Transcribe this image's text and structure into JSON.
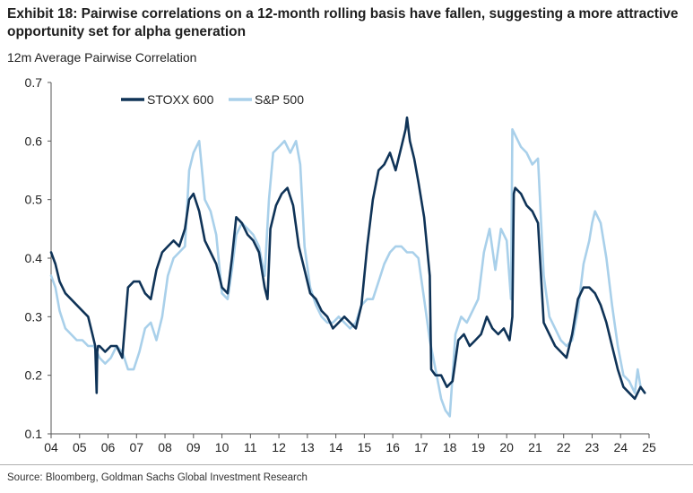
{
  "header": {
    "title": "Exhibit 18: Pairwise correlations on a 12-month rolling basis have fallen, suggesting a more attractive opportunity set for alpha generation",
    "subtitle": "12m Average Pairwise Correlation"
  },
  "footer": {
    "source": "Source: Bloomberg, Goldman Sachs Global Investment Research"
  },
  "colors": {
    "stoxx": "#0f3357",
    "sp": "#a9d0ea",
    "axis": "#555555"
  },
  "chart_data": {
    "type": "line",
    "title": "12m Average Pairwise Correlation",
    "xlabel": "",
    "ylabel": "",
    "xlim": [
      2004.0,
      2025.0
    ],
    "ylim": [
      0.1,
      0.7
    ],
    "yticks": [
      0.1,
      0.2,
      0.3,
      0.4,
      0.5,
      0.6,
      0.7
    ],
    "ytick_labels": [
      "0.1",
      "0.2",
      "0.3",
      "0.4",
      "0.5",
      "0.6",
      "0.7"
    ],
    "xticks": [
      2004,
      2005,
      2006,
      2007,
      2008,
      2009,
      2010,
      2011,
      2012,
      2013,
      2014,
      2015,
      2016,
      2017,
      2018,
      2019,
      2020,
      2021,
      2022,
      2023,
      2024,
      2025
    ],
    "xtick_labels": [
      "04",
      "05",
      "06",
      "07",
      "08",
      "09",
      "10",
      "11",
      "12",
      "13",
      "14",
      "15",
      "16",
      "17",
      "18",
      "19",
      "20",
      "21",
      "22",
      "23",
      "24",
      "25"
    ],
    "grid": false,
    "legend": "top-left",
    "series": [
      {
        "name": "STOXX 600",
        "color": "#0f3357",
        "x": [
          2004.0,
          2004.15,
          2004.3,
          2004.5,
          2004.7,
          2004.9,
          2005.1,
          2005.3,
          2005.45,
          2005.55,
          2005.6,
          2005.62,
          2005.65,
          2005.7,
          2005.9,
          2006.1,
          2006.3,
          2006.5,
          2006.7,
          2006.9,
          2007.1,
          2007.3,
          2007.5,
          2007.7,
          2007.9,
          2008.1,
          2008.3,
          2008.5,
          2008.7,
          2008.85,
          2009.0,
          2009.2,
          2009.4,
          2009.6,
          2009.8,
          2010.0,
          2010.2,
          2010.35,
          2010.5,
          2010.7,
          2010.9,
          2011.1,
          2011.3,
          2011.5,
          2011.6,
          2011.7,
          2011.9,
          2012.1,
          2012.3,
          2012.5,
          2012.7,
          2012.9,
          2013.1,
          2013.3,
          2013.5,
          2013.7,
          2013.9,
          2014.1,
          2014.3,
          2014.5,
          2014.7,
          2014.9,
          2015.1,
          2015.3,
          2015.5,
          2015.7,
          2015.9,
          2016.1,
          2016.3,
          2016.45,
          2016.5,
          2016.6,
          2016.75,
          2016.9,
          2017.1,
          2017.3,
          2017.35,
          2017.5,
          2017.7,
          2017.9,
          2018.1,
          2018.3,
          2018.5,
          2018.7,
          2018.9,
          2019.1,
          2019.3,
          2019.5,
          2019.7,
          2019.9,
          2020.1,
          2020.2,
          2020.25,
          2020.3,
          2020.5,
          2020.7,
          2020.9,
          2021.1,
          2021.3,
          2021.5,
          2021.7,
          2021.9,
          2022.1,
          2022.3,
          2022.5,
          2022.7,
          2022.9,
          2023.1,
          2023.3,
          2023.5,
          2023.7,
          2023.9,
          2024.1,
          2024.3,
          2024.5,
          2024.7,
          2024.85
        ],
        "values": [
          0.41,
          0.39,
          0.36,
          0.34,
          0.33,
          0.32,
          0.31,
          0.3,
          0.27,
          0.25,
          0.17,
          0.24,
          0.25,
          0.25,
          0.24,
          0.25,
          0.25,
          0.23,
          0.35,
          0.36,
          0.36,
          0.34,
          0.33,
          0.38,
          0.41,
          0.42,
          0.43,
          0.42,
          0.45,
          0.5,
          0.51,
          0.48,
          0.43,
          0.41,
          0.39,
          0.35,
          0.34,
          0.4,
          0.47,
          0.46,
          0.44,
          0.43,
          0.41,
          0.35,
          0.33,
          0.45,
          0.49,
          0.51,
          0.52,
          0.49,
          0.42,
          0.38,
          0.34,
          0.33,
          0.31,
          0.3,
          0.28,
          0.29,
          0.3,
          0.29,
          0.28,
          0.32,
          0.42,
          0.5,
          0.55,
          0.56,
          0.58,
          0.55,
          0.59,
          0.62,
          0.64,
          0.6,
          0.57,
          0.53,
          0.47,
          0.37,
          0.21,
          0.2,
          0.2,
          0.18,
          0.19,
          0.26,
          0.27,
          0.25,
          0.26,
          0.27,
          0.3,
          0.28,
          0.27,
          0.28,
          0.26,
          0.3,
          0.51,
          0.52,
          0.51,
          0.49,
          0.48,
          0.46,
          0.29,
          0.27,
          0.25,
          0.24,
          0.23,
          0.27,
          0.33,
          0.35,
          0.35,
          0.34,
          0.32,
          0.29,
          0.25,
          0.21,
          0.18,
          0.17,
          0.16,
          0.18,
          0.17
        ]
      },
      {
        "name": "S&P 500",
        "color": "#a9d0ea",
        "x": [
          2004.0,
          2004.15,
          2004.3,
          2004.5,
          2004.7,
          2004.9,
          2005.1,
          2005.3,
          2005.5,
          2005.7,
          2005.9,
          2006.1,
          2006.3,
          2006.5,
          2006.7,
          2006.9,
          2007.1,
          2007.3,
          2007.5,
          2007.7,
          2007.9,
          2008.1,
          2008.3,
          2008.5,
          2008.7,
          2008.85,
          2009.0,
          2009.2,
          2009.4,
          2009.6,
          2009.8,
          2010.0,
          2010.2,
          2010.35,
          2010.5,
          2010.7,
          2010.9,
          2011.1,
          2011.3,
          2011.5,
          2011.65,
          2011.8,
          2012.0,
          2012.2,
          2012.4,
          2012.6,
          2012.75,
          2012.9,
          2013.1,
          2013.3,
          2013.5,
          2013.7,
          2013.9,
          2014.1,
          2014.3,
          2014.5,
          2014.7,
          2014.9,
          2015.1,
          2015.3,
          2015.5,
          2015.7,
          2015.9,
          2016.1,
          2016.3,
          2016.5,
          2016.7,
          2016.9,
          2017.1,
          2017.3,
          2017.5,
          2017.7,
          2017.85,
          2018.0,
          2018.2,
          2018.4,
          2018.6,
          2018.8,
          2019.0,
          2019.2,
          2019.4,
          2019.6,
          2019.8,
          2020.0,
          2020.15,
          2020.2,
          2020.3,
          2020.5,
          2020.7,
          2020.9,
          2021.1,
          2021.3,
          2021.5,
          2021.7,
          2021.9,
          2022.1,
          2022.3,
          2022.5,
          2022.7,
          2022.9,
          2023.0,
          2023.1,
          2023.3,
          2023.5,
          2023.7,
          2023.9,
          2024.1,
          2024.3,
          2024.5,
          2024.6,
          2024.7,
          2024.85
        ],
        "values": [
          0.37,
          0.35,
          0.31,
          0.28,
          0.27,
          0.26,
          0.26,
          0.25,
          0.25,
          0.23,
          0.22,
          0.23,
          0.25,
          0.24,
          0.21,
          0.21,
          0.24,
          0.28,
          0.29,
          0.26,
          0.3,
          0.37,
          0.4,
          0.41,
          0.42,
          0.55,
          0.58,
          0.6,
          0.5,
          0.48,
          0.44,
          0.34,
          0.33,
          0.38,
          0.44,
          0.46,
          0.45,
          0.44,
          0.42,
          0.37,
          0.5,
          0.58,
          0.59,
          0.6,
          0.58,
          0.6,
          0.56,
          0.42,
          0.35,
          0.32,
          0.3,
          0.29,
          0.29,
          0.3,
          0.29,
          0.28,
          0.29,
          0.32,
          0.33,
          0.33,
          0.36,
          0.39,
          0.41,
          0.42,
          0.42,
          0.41,
          0.41,
          0.4,
          0.33,
          0.26,
          0.21,
          0.16,
          0.14,
          0.13,
          0.27,
          0.3,
          0.29,
          0.31,
          0.33,
          0.41,
          0.45,
          0.38,
          0.45,
          0.43,
          0.33,
          0.62,
          0.61,
          0.59,
          0.58,
          0.56,
          0.57,
          0.37,
          0.3,
          0.28,
          0.26,
          0.25,
          0.26,
          0.31,
          0.39,
          0.43,
          0.46,
          0.48,
          0.46,
          0.4,
          0.32,
          0.25,
          0.2,
          0.19,
          0.17,
          0.21,
          0.18,
          0.17
        ]
      }
    ]
  }
}
